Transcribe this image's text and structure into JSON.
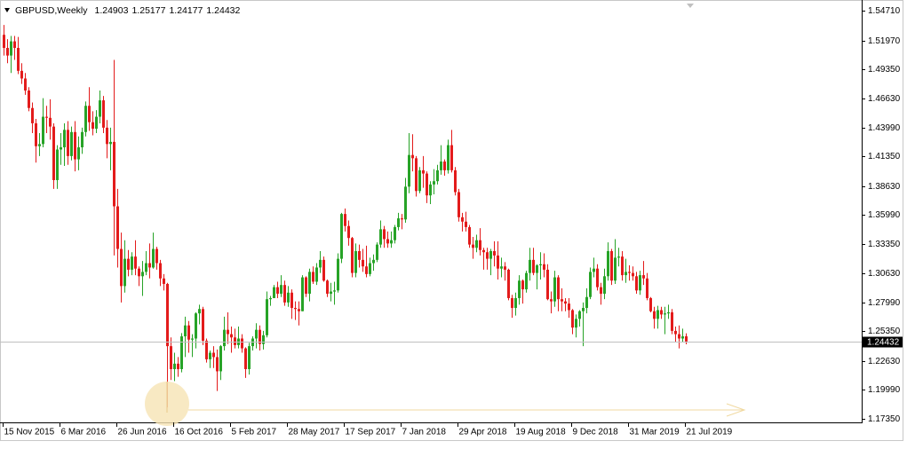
{
  "chart_data": {
    "type": "candlestick",
    "title": "GBPUSD,Weekly",
    "up_color": "#27a327",
    "down_color": "#e31b1b",
    "ylim": [
      1.1735,
      1.5471
    ],
    "yticks": [
      {
        "value": 1.5471,
        "label": "1.54710"
      },
      {
        "value": 1.5197,
        "label": "1.51970"
      },
      {
        "value": 1.4935,
        "label": "1.49350"
      },
      {
        "value": 1.4663,
        "label": "1.46630"
      },
      {
        "value": 1.4399,
        "label": "1.43990"
      },
      {
        "value": 1.4135,
        "label": "1.41350"
      },
      {
        "value": 1.3863,
        "label": "1.38630"
      },
      {
        "value": 1.3599,
        "label": "1.35990"
      },
      {
        "value": 1.3335,
        "label": "1.33350"
      },
      {
        "value": 1.3063,
        "label": "1.30630"
      },
      {
        "value": 1.2799,
        "label": "1.27990"
      },
      {
        "value": 1.2535,
        "label": "1.25350"
      },
      {
        "value": 1.2263,
        "label": "1.22630"
      },
      {
        "value": 1.1999,
        "label": "1.19990"
      },
      {
        "value": 1.1735,
        "label": "1.17350"
      }
    ],
    "categories": [
      "15 Nov 2015",
      null,
      null,
      null,
      null,
      null,
      null,
      null,
      null,
      null,
      null,
      null,
      null,
      null,
      null,
      null,
      "6 Mar 2016",
      null,
      null,
      null,
      null,
      null,
      null,
      null,
      null,
      null,
      null,
      null,
      null,
      null,
      null,
      null,
      "26 Jun 2016",
      null,
      null,
      null,
      null,
      null,
      null,
      null,
      null,
      null,
      null,
      null,
      null,
      null,
      null,
      null,
      "16 Oct 2016",
      null,
      null,
      null,
      null,
      null,
      null,
      null,
      null,
      null,
      null,
      null,
      null,
      null,
      null,
      null,
      "5 Feb 2017",
      null,
      null,
      null,
      null,
      null,
      null,
      null,
      null,
      null,
      null,
      null,
      null,
      null,
      null,
      null,
      "28 May 2017",
      null,
      null,
      null,
      null,
      null,
      null,
      null,
      null,
      null,
      null,
      null,
      null,
      null,
      null,
      null,
      "17 Sep 2017",
      null,
      null,
      null,
      null,
      null,
      null,
      null,
      null,
      null,
      null,
      null,
      null,
      null,
      null,
      null,
      "7 Jan 2018",
      null,
      null,
      null,
      null,
      null,
      null,
      null,
      null,
      null,
      null,
      null,
      null,
      null,
      null,
      null,
      "29 Apr 2018",
      null,
      null,
      null,
      null,
      null,
      null,
      null,
      null,
      null,
      null,
      null,
      null,
      null,
      null,
      null,
      "19 Aug 2018",
      null,
      null,
      null,
      null,
      null,
      null,
      null,
      null,
      null,
      null,
      null,
      null,
      null,
      null,
      null,
      "9 Dec 2018",
      null,
      null,
      null,
      null,
      null,
      null,
      null,
      null,
      null,
      null,
      null,
      null,
      null,
      null,
      null,
      "31 Mar 2019",
      null,
      null,
      null,
      null,
      null,
      null,
      null,
      null,
      null,
      null,
      null,
      null,
      null,
      null,
      null,
      "21 Jul 2019"
    ],
    "ohlc": [
      [
        1.525,
        1.534,
        1.506,
        1.513
      ],
      [
        1.513,
        1.521,
        1.499,
        1.506
      ],
      [
        1.506,
        1.524,
        1.49,
        1.519
      ],
      [
        1.519,
        1.524,
        1.502,
        1.513
      ],
      [
        1.513,
        1.523,
        1.489,
        1.492
      ],
      [
        1.492,
        1.499,
        1.48,
        1.485
      ],
      [
        1.485,
        1.49,
        1.47,
        1.474
      ],
      [
        1.474,
        1.477,
        1.455,
        1.458
      ],
      [
        1.458,
        1.463,
        1.435,
        1.444
      ],
      [
        1.444,
        1.448,
        1.408,
        1.423
      ],
      [
        1.423,
        1.435,
        1.414,
        1.425
      ],
      [
        1.425,
        1.467,
        1.422,
        1.45
      ],
      [
        1.45,
        1.46,
        1.435,
        1.449
      ],
      [
        1.449,
        1.466,
        1.429,
        1.441
      ],
      [
        1.441,
        1.444,
        1.384,
        1.392
      ],
      [
        1.392,
        1.424,
        1.384,
        1.42
      ],
      [
        1.42,
        1.435,
        1.406,
        1.422
      ],
      [
        1.422,
        1.444,
        1.405,
        1.438
      ],
      [
        1.438,
        1.446,
        1.406,
        1.414
      ],
      [
        1.414,
        1.441,
        1.41,
        1.436
      ],
      [
        1.436,
        1.446,
        1.4,
        1.411
      ],
      [
        1.411,
        1.432,
        1.401,
        1.422
      ],
      [
        1.422,
        1.44,
        1.416,
        1.436
      ],
      [
        1.436,
        1.464,
        1.432,
        1.46
      ],
      [
        1.46,
        1.477,
        1.437,
        1.445
      ],
      [
        1.445,
        1.455,
        1.433,
        1.439
      ],
      [
        1.439,
        1.456,
        1.435,
        1.45
      ],
      [
        1.45,
        1.474,
        1.444,
        1.465
      ],
      [
        1.465,
        1.469,
        1.435,
        1.44
      ],
      [
        1.44,
        1.447,
        1.412,
        1.425
      ],
      [
        1.425,
        1.44,
        1.401,
        1.427
      ],
      [
        1.427,
        1.502,
        1.323,
        1.368
      ],
      [
        1.368,
        1.384,
        1.312,
        1.329
      ],
      [
        1.329,
        1.344,
        1.28,
        1.295
      ],
      [
        1.295,
        1.337,
        1.289,
        1.32
      ],
      [
        1.32,
        1.328,
        1.304,
        1.31
      ],
      [
        1.31,
        1.326,
        1.305,
        1.322
      ],
      [
        1.322,
        1.337,
        1.305,
        1.311
      ],
      [
        1.311,
        1.313,
        1.295,
        1.304
      ],
      [
        1.304,
        1.318,
        1.286,
        1.308
      ],
      [
        1.308,
        1.327,
        1.305,
        1.316
      ],
      [
        1.316,
        1.334,
        1.302,
        1.312
      ],
      [
        1.312,
        1.344,
        1.311,
        1.329
      ],
      [
        1.329,
        1.331,
        1.31,
        1.316
      ],
      [
        1.316,
        1.319,
        1.295,
        1.302
      ],
      [
        1.302,
        1.306,
        1.291,
        1.297
      ],
      [
        1.297,
        1.298,
        1.184,
        1.24
      ],
      [
        1.24,
        1.248,
        1.209,
        1.219
      ],
      [
        1.219,
        1.234,
        1.208,
        1.224
      ],
      [
        1.224,
        1.23,
        1.212,
        1.219
      ],
      [
        1.219,
        1.252,
        1.216,
        1.249
      ],
      [
        1.249,
        1.267,
        1.23,
        1.259
      ],
      [
        1.259,
        1.263,
        1.234,
        1.246
      ],
      [
        1.246,
        1.251,
        1.23,
        1.247
      ],
      [
        1.247,
        1.271,
        1.238,
        1.27
      ],
      [
        1.27,
        1.278,
        1.26,
        1.274
      ],
      [
        1.274,
        1.276,
        1.241,
        1.245
      ],
      [
        1.245,
        1.247,
        1.225,
        1.228
      ],
      [
        1.228,
        1.236,
        1.22,
        1.234
      ],
      [
        1.234,
        1.24,
        1.22,
        1.23
      ],
      [
        1.23,
        1.237,
        1.199,
        1.217
      ],
      [
        1.217,
        1.241,
        1.209,
        1.24
      ],
      [
        1.24,
        1.267,
        1.236,
        1.255
      ],
      [
        1.255,
        1.271,
        1.242,
        1.251
      ],
      [
        1.251,
        1.258,
        1.234,
        1.248
      ],
      [
        1.248,
        1.256,
        1.238,
        1.241
      ],
      [
        1.241,
        1.258,
        1.238,
        1.247
      ],
      [
        1.247,
        1.251,
        1.234,
        1.238
      ],
      [
        1.238,
        1.239,
        1.211,
        1.219
      ],
      [
        1.219,
        1.243,
        1.214,
        1.24
      ],
      [
        1.24,
        1.249,
        1.236,
        1.247
      ],
      [
        1.247,
        1.261,
        1.238,
        1.255
      ],
      [
        1.255,
        1.259,
        1.236,
        1.242
      ],
      [
        1.242,
        1.254,
        1.237,
        1.25
      ],
      [
        1.25,
        1.29,
        1.248,
        1.283
      ],
      [
        1.283,
        1.286,
        1.277,
        1.284
      ],
      [
        1.284,
        1.296,
        1.284,
        1.294
      ],
      [
        1.294,
        1.299,
        1.284,
        1.288
      ],
      [
        1.288,
        1.305,
        1.285,
        1.296
      ],
      [
        1.296,
        1.3,
        1.277,
        1.28
      ],
      [
        1.28,
        1.295,
        1.276,
        1.289
      ],
      [
        1.289,
        1.292,
        1.265,
        1.275
      ],
      [
        1.275,
        1.281,
        1.264,
        1.274
      ],
      [
        1.274,
        1.281,
        1.259,
        1.272
      ],
      [
        1.272,
        1.305,
        1.272,
        1.303
      ],
      [
        1.303,
        1.304,
        1.285,
        1.288
      ],
      [
        1.288,
        1.311,
        1.281,
        1.308
      ],
      [
        1.308,
        1.313,
        1.297,
        1.299
      ],
      [
        1.299,
        1.316,
        1.296,
        1.312
      ],
      [
        1.312,
        1.327,
        1.307,
        1.319
      ],
      [
        1.319,
        1.322,
        1.299,
        1.3
      ],
      [
        1.3,
        1.301,
        1.285,
        1.288
      ],
      [
        1.288,
        1.298,
        1.281,
        1.29
      ],
      [
        1.29,
        1.299,
        1.278,
        1.291
      ],
      [
        1.291,
        1.325,
        1.289,
        1.32
      ],
      [
        1.32,
        1.362,
        1.316,
        1.361
      ],
      [
        1.361,
        1.366,
        1.345,
        1.35
      ],
      [
        1.35,
        1.355,
        1.332,
        1.339
      ],
      [
        1.339,
        1.34,
        1.303,
        1.307
      ],
      [
        1.307,
        1.334,
        1.303,
        1.327
      ],
      [
        1.327,
        1.333,
        1.312,
        1.319
      ],
      [
        1.319,
        1.329,
        1.308,
        1.313
      ],
      [
        1.313,
        1.332,
        1.303,
        1.306
      ],
      [
        1.306,
        1.321,
        1.304,
        1.316
      ],
      [
        1.316,
        1.324,
        1.309,
        1.319
      ],
      [
        1.319,
        1.335,
        1.317,
        1.333
      ],
      [
        1.333,
        1.355,
        1.33,
        1.347
      ],
      [
        1.347,
        1.35,
        1.33,
        1.338
      ],
      [
        1.338,
        1.345,
        1.33,
        1.334
      ],
      [
        1.334,
        1.345,
        1.33,
        1.337
      ],
      [
        1.337,
        1.351,
        1.334,
        1.349
      ],
      [
        1.349,
        1.362,
        1.346,
        1.357
      ],
      [
        1.357,
        1.361,
        1.347,
        1.356
      ],
      [
        1.356,
        1.394,
        1.353,
        1.386
      ],
      [
        1.386,
        1.435,
        1.38,
        1.415
      ],
      [
        1.415,
        1.434,
        1.4,
        1.412
      ],
      [
        1.412,
        1.414,
        1.377,
        1.382
      ],
      [
        1.382,
        1.404,
        1.38,
        1.401
      ],
      [
        1.401,
        1.414,
        1.385,
        1.398
      ],
      [
        1.398,
        1.4,
        1.371,
        1.378
      ],
      [
        1.378,
        1.391,
        1.37,
        1.388
      ],
      [
        1.388,
        1.402,
        1.379,
        1.391
      ],
      [
        1.391,
        1.406,
        1.388,
        1.401
      ],
      [
        1.401,
        1.424,
        1.397,
        1.409
      ],
      [
        1.409,
        1.411,
        1.396,
        1.401
      ],
      [
        1.401,
        1.429,
        1.398,
        1.424
      ],
      [
        1.424,
        1.438,
        1.399,
        1.401
      ],
      [
        1.401,
        1.404,
        1.378,
        1.381
      ],
      [
        1.381,
        1.384,
        1.354,
        1.358
      ],
      [
        1.358,
        1.362,
        1.345,
        1.354
      ],
      [
        1.354,
        1.363,
        1.345,
        1.349
      ],
      [
        1.349,
        1.351,
        1.33,
        1.333
      ],
      [
        1.333,
        1.34,
        1.32,
        1.33
      ],
      [
        1.33,
        1.342,
        1.326,
        1.337
      ],
      [
        1.337,
        1.348,
        1.323,
        1.328
      ],
      [
        1.328,
        1.33,
        1.31,
        1.326
      ],
      [
        1.326,
        1.33,
        1.31,
        1.32
      ],
      [
        1.32,
        1.329,
        1.305,
        1.327
      ],
      [
        1.327,
        1.336,
        1.313,
        1.323
      ],
      [
        1.323,
        1.336,
        1.301,
        1.311
      ],
      [
        1.311,
        1.321,
        1.303,
        1.313
      ],
      [
        1.313,
        1.317,
        1.3,
        1.31
      ],
      [
        1.31,
        1.311,
        1.282,
        1.284
      ],
      [
        1.284,
        1.287,
        1.266,
        1.275
      ],
      [
        1.275,
        1.289,
        1.268,
        1.284
      ],
      [
        1.284,
        1.305,
        1.278,
        1.3
      ],
      [
        1.3,
        1.301,
        1.279,
        1.292
      ],
      [
        1.292,
        1.309,
        1.289,
        1.307
      ],
      [
        1.307,
        1.33,
        1.3,
        1.319
      ],
      [
        1.319,
        1.33,
        1.305,
        1.307
      ],
      [
        1.307,
        1.315,
        1.292,
        1.314
      ],
      [
        1.314,
        1.326,
        1.301,
        1.315
      ],
      [
        1.315,
        1.325,
        1.303,
        1.31
      ],
      [
        1.31,
        1.315,
        1.282,
        1.283
      ],
      [
        1.283,
        1.29,
        1.27,
        1.281
      ],
      [
        1.281,
        1.309,
        1.276,
        1.303
      ],
      [
        1.303,
        1.305,
        1.272,
        1.283
      ],
      [
        1.283,
        1.293,
        1.272,
        1.281
      ],
      [
        1.281,
        1.284,
        1.272,
        1.279
      ],
      [
        1.279,
        1.284,
        1.266,
        1.273
      ],
      [
        1.273,
        1.274,
        1.251,
        1.257
      ],
      [
        1.257,
        1.269,
        1.248,
        1.265
      ],
      [
        1.265,
        1.273,
        1.258,
        1.272
      ],
      [
        1.272,
        1.28,
        1.24,
        1.275
      ],
      [
        1.275,
        1.293,
        1.27,
        1.285
      ],
      [
        1.285,
        1.312,
        1.283,
        1.308
      ],
      [
        1.308,
        1.321,
        1.303,
        1.311
      ],
      [
        1.311,
        1.315,
        1.291,
        1.294
      ],
      [
        1.294,
        1.298,
        1.278,
        1.288
      ],
      [
        1.288,
        1.311,
        1.283,
        1.304
      ],
      [
        1.304,
        1.335,
        1.3,
        1.327
      ],
      [
        1.327,
        1.329,
        1.296,
        1.3
      ],
      [
        1.3,
        1.338,
        1.297,
        1.321
      ],
      [
        1.321,
        1.33,
        1.313,
        1.322
      ],
      [
        1.322,
        1.327,
        1.3,
        1.305
      ],
      [
        1.305,
        1.32,
        1.298,
        1.308
      ],
      [
        1.308,
        1.314,
        1.3,
        1.307
      ],
      [
        1.307,
        1.313,
        1.3,
        1.304
      ],
      [
        1.304,
        1.308,
        1.288,
        1.291
      ],
      [
        1.291,
        1.309,
        1.287,
        1.305
      ],
      [
        1.305,
        1.318,
        1.296,
        1.302
      ],
      [
        1.302,
        1.307,
        1.282,
        1.284
      ],
      [
        1.284,
        1.285,
        1.271,
        1.272
      ],
      [
        1.272,
        1.276,
        1.256,
        1.265
      ],
      [
        1.265,
        1.277,
        1.256,
        1.273
      ],
      [
        1.273,
        1.276,
        1.265,
        1.269
      ],
      [
        1.269,
        1.276,
        1.251,
        1.27
      ],
      [
        1.27,
        1.278,
        1.265,
        1.271
      ],
      [
        1.271,
        1.274,
        1.251,
        1.254
      ],
      [
        1.254,
        1.258,
        1.244,
        1.251
      ],
      [
        1.251,
        1.259,
        1.238,
        1.247
      ],
      [
        1.247,
        1.256,
        1.244,
        1.249
      ],
      [
        1.24903,
        1.25177,
        1.24177,
        1.24432
      ]
    ]
  }
}
